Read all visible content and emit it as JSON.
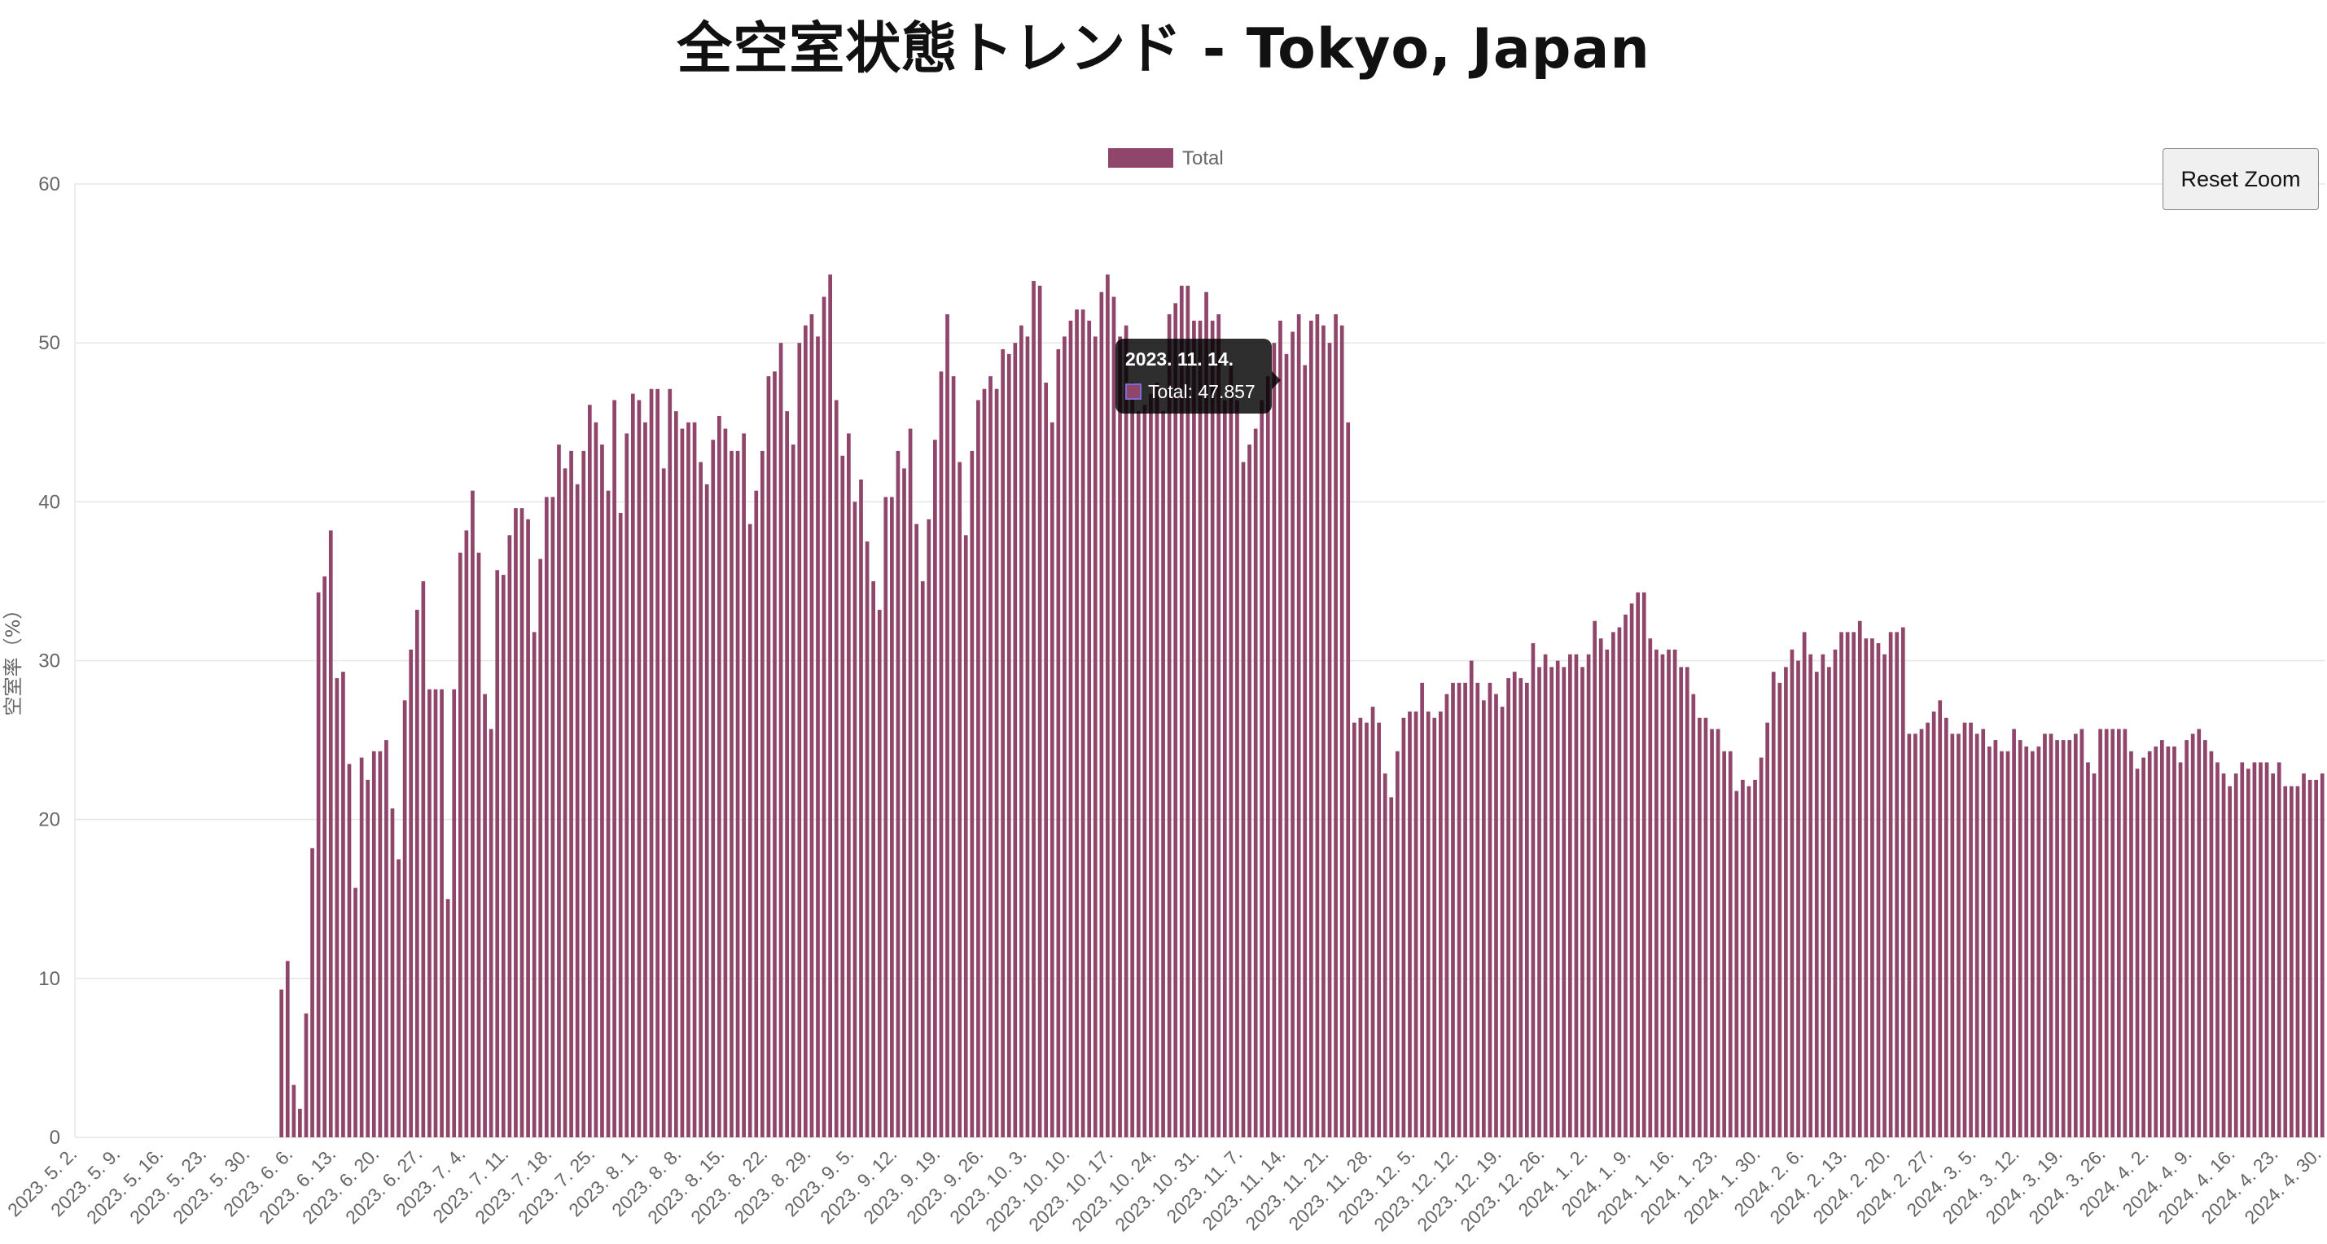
{
  "title": "全空室状態トレンド - Tokyo, Japan",
  "reset_button_label": "Reset Zoom",
  "tooltip": {
    "title": "2023. 11. 14.",
    "series_name": "Total",
    "value_text": "47.857",
    "body": "Total: 47.857"
  },
  "colors": {
    "bar": "#8f466a",
    "grid": "#e6e6e6",
    "tick_text": "#666666",
    "tooltip_bg": "#000000"
  },
  "chart_data": {
    "type": "bar",
    "legend": {
      "position": "top-center",
      "entries": [
        "Total"
      ]
    },
    "ylabel": "空室率（%）",
    "ylim": [
      0,
      60
    ],
    "yticks": [
      0,
      10,
      20,
      30,
      40,
      50,
      60
    ],
    "grid": true,
    "x_start": "2023-05-02",
    "x_tick_labels": [
      "2023. 5. 2.",
      "2023. 5. 9.",
      "2023. 5. 16.",
      "2023. 5. 23.",
      "2023. 5. 30.",
      "2023. 6. 6.",
      "2023. 6. 13.",
      "2023. 6. 20.",
      "2023. 6. 27.",
      "2023. 7. 4.",
      "2023. 7. 11.",
      "2023. 7. 18.",
      "2023. 7. 25.",
      "2023. 8. 1.",
      "2023. 8. 8.",
      "2023. 8. 15.",
      "2023. 8. 22.",
      "2023. 8. 29.",
      "2023. 9. 5.",
      "2023. 9. 12.",
      "2023. 9. 19.",
      "2023. 9. 26.",
      "2023. 10. 3.",
      "2023. 10. 10.",
      "2023. 10. 17.",
      "2023. 10. 24.",
      "2023. 10. 31.",
      "2023. 11. 7.",
      "2023. 11. 14.",
      "2023. 11. 21.",
      "2023. 11. 28.",
      "2023. 12. 5.",
      "2023. 12. 12.",
      "2023. 12. 19.",
      "2023. 12. 26.",
      "2024. 1. 2.",
      "2024. 1. 9.",
      "2024. 1. 16.",
      "2024. 1. 23.",
      "2024. 1. 30.",
      "2024. 2. 6.",
      "2024. 2. 13.",
      "2024. 2. 20.",
      "2024. 2. 27.",
      "2024. 3. 5.",
      "2024. 3. 12.",
      "2024. 3. 19.",
      "2024. 3. 26.",
      "2024. 4. 2.",
      "2024. 4. 9.",
      "2024. 4. 16.",
      "2024. 4. 23.",
      "2024. 4. 30."
    ],
    "series": [
      {
        "name": "Total",
        "values": [
          0,
          0,
          0,
          0,
          0,
          0,
          0,
          0,
          0,
          0,
          0,
          0,
          0,
          0,
          0,
          0,
          0,
          0,
          0,
          0,
          0,
          0,
          0,
          0,
          0,
          0,
          0,
          0,
          0,
          0,
          0,
          0,
          0,
          9.3,
          11.1,
          3.3,
          1.8,
          7.8,
          18.2,
          34.3,
          35.3,
          38.2,
          28.9,
          29.3,
          23.5,
          15.7,
          23.9,
          22.5,
          24.3,
          24.3,
          25.0,
          20.7,
          17.5,
          27.5,
          30.7,
          33.2,
          35.0,
          28.2,
          28.2,
          28.2,
          15.0,
          28.2,
          36.8,
          38.2,
          40.7,
          36.8,
          27.9,
          25.7,
          35.7,
          35.4,
          37.9,
          39.6,
          39.6,
          38.9,
          31.8,
          36.4,
          40.3,
          40.3,
          43.6,
          42.1,
          43.2,
          41.1,
          43.2,
          46.1,
          45.0,
          43.6,
          40.7,
          46.4,
          39.3,
          44.3,
          46.8,
          46.4,
          45.0,
          47.1,
          47.1,
          42.1,
          47.1,
          45.7,
          44.6,
          45.0,
          45.0,
          42.5,
          41.1,
          43.9,
          45.4,
          44.6,
          43.2,
          43.2,
          44.3,
          38.6,
          40.7,
          43.2,
          47.9,
          48.2,
          50.0,
          45.7,
          43.6,
          50.0,
          51.1,
          51.8,
          50.4,
          52.9,
          54.3,
          46.4,
          42.9,
          44.3,
          40.0,
          41.4,
          37.5,
          35.0,
          33.2,
          40.3,
          40.3,
          43.2,
          42.1,
          44.6,
          38.6,
          35.0,
          38.9,
          43.9,
          48.2,
          51.8,
          47.9,
          42.5,
          37.9,
          43.2,
          46.4,
          47.1,
          47.9,
          47.1,
          49.6,
          49.3,
          50.0,
          51.1,
          50.4,
          53.9,
          53.6,
          47.5,
          45.0,
          49.6,
          50.4,
          51.4,
          52.1,
          52.1,
          51.4,
          50.4,
          53.2,
          54.3,
          52.9,
          50.4,
          51.1,
          47.5,
          45.7,
          46.1,
          46.8,
          47.5,
          45.7,
          51.8,
          52.5,
          53.6,
          53.6,
          51.4,
          51.4,
          53.2,
          51.4,
          51.8,
          46.4,
          48.6,
          46.4,
          42.5,
          43.6,
          44.6,
          46.4,
          47.9,
          50.0,
          51.4,
          49.3,
          50.7,
          51.8,
          48.6,
          51.4,
          51.8,
          51.1,
          50.0,
          51.8,
          51.1,
          45.0,
          26.1,
          26.4,
          26.1,
          27.1,
          26.1,
          22.9,
          21.4,
          24.3,
          26.4,
          26.8,
          26.8,
          28.6,
          26.8,
          26.4,
          26.8,
          27.9,
          28.6,
          28.6,
          28.6,
          30.0,
          28.6,
          27.5,
          28.6,
          27.9,
          27.1,
          28.9,
          29.3,
          28.9,
          28.6,
          31.1,
          29.6,
          30.4,
          29.6,
          30.0,
          29.6,
          30.4,
          30.4,
          29.6,
          30.4,
          32.5,
          31.4,
          30.7,
          31.8,
          32.1,
          32.9,
          33.6,
          34.3,
          34.3,
          31.4,
          30.7,
          30.4,
          30.7,
          30.7,
          29.6,
          29.6,
          27.9,
          26.4,
          26.4,
          25.7,
          25.7,
          24.3,
          24.3,
          21.8,
          22.5,
          22.1,
          22.5,
          23.9,
          26.1,
          29.3,
          28.6,
          29.6,
          30.7,
          30.0,
          31.8,
          30.4,
          29.3,
          30.4,
          29.6,
          30.7,
          31.8,
          31.8,
          31.8,
          32.5,
          31.4,
          31.4,
          31.1,
          30.4,
          31.8,
          31.8,
          32.1,
          25.4,
          25.4,
          25.7,
          26.1,
          26.8,
          27.5,
          26.4,
          25.4,
          25.4,
          26.1,
          26.1,
          25.4,
          25.7,
          24.6,
          25.0,
          24.3,
          24.3,
          25.7,
          25.0,
          24.6,
          24.3,
          24.6,
          25.4,
          25.4,
          25.0,
          25.0,
          25.0,
          25.4,
          25.7,
          23.6,
          22.9,
          25.7,
          25.7,
          25.7,
          25.7,
          25.7,
          24.3,
          23.2,
          23.9,
          24.3,
          24.6,
          25.0,
          24.6,
          24.6,
          23.6,
          25.0,
          25.4,
          25.7,
          25.0,
          24.3,
          23.6,
          22.9,
          22.1,
          22.9,
          23.6,
          23.2,
          23.6,
          23.6,
          23.6,
          22.9,
          23.6,
          22.1,
          22.1,
          22.1,
          22.9,
          22.5,
          22.5,
          22.9
        ]
      }
    ]
  }
}
